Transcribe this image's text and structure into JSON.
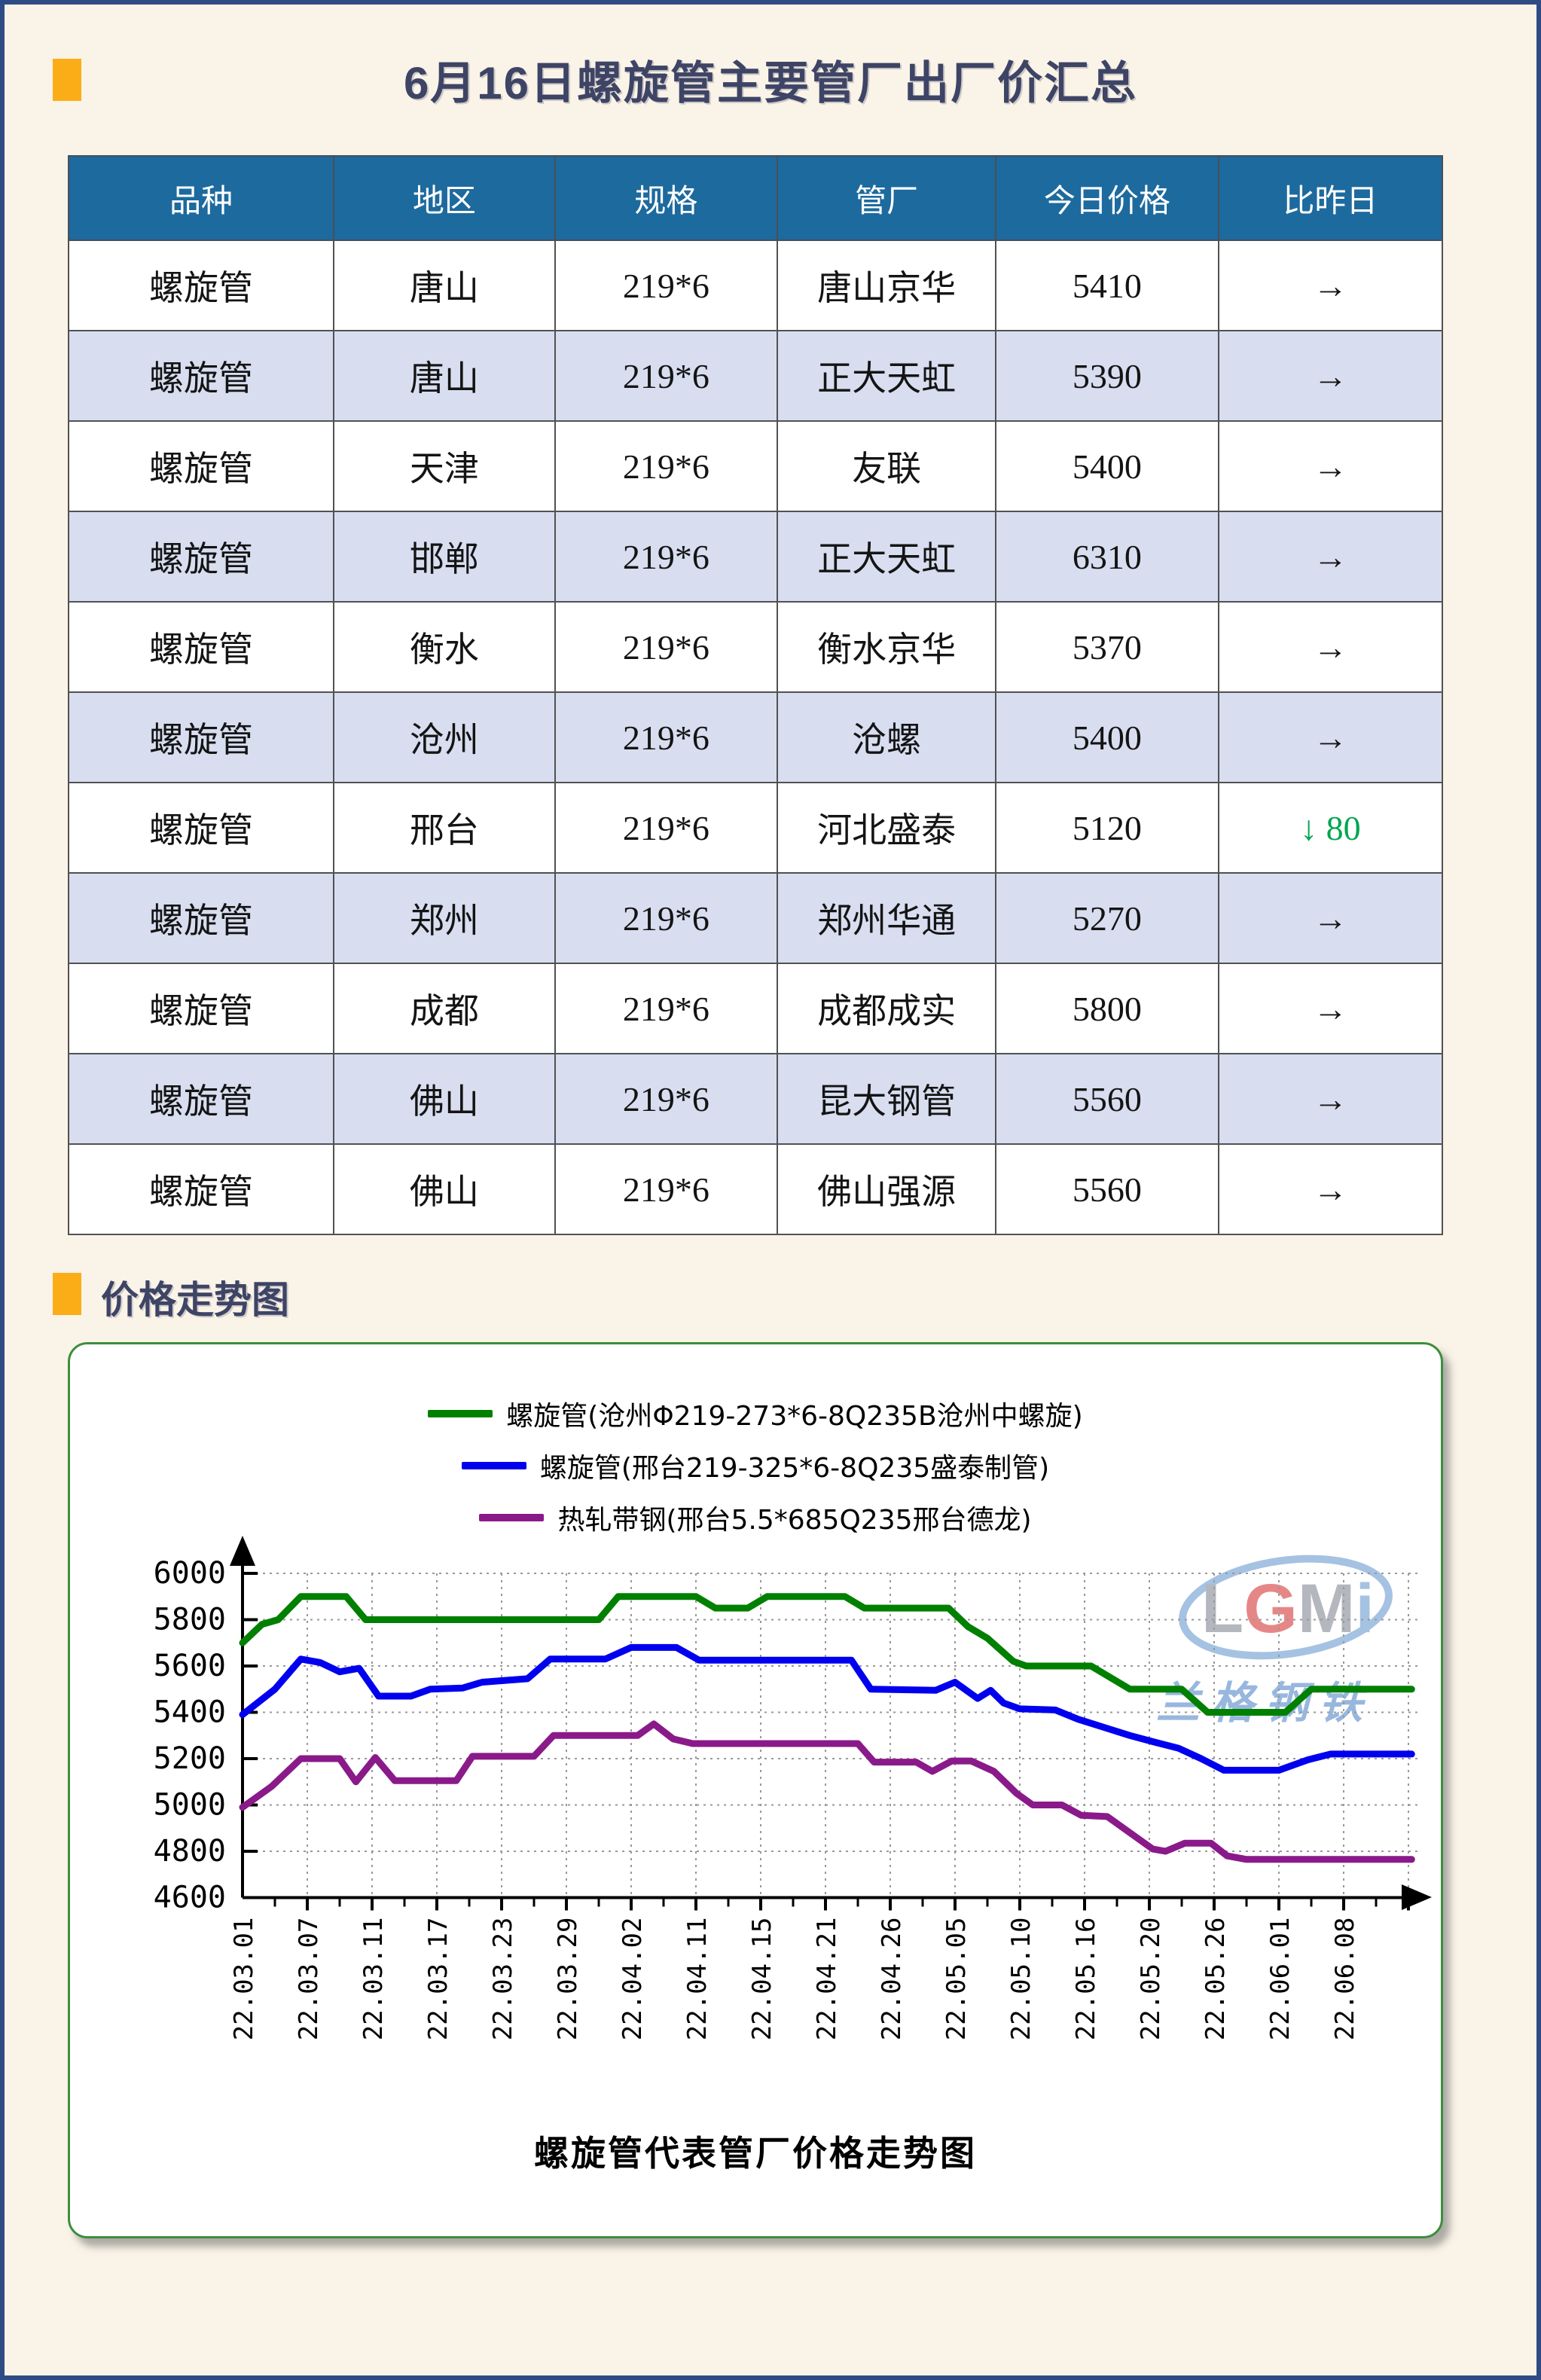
{
  "colors": {
    "page_background": "#faf3e7",
    "page_border": "#2e4b85",
    "accent_orange": "#fbad18",
    "heading_text": "#3e4465",
    "table_header_bg": "#1d6a9e",
    "table_alt_row_bg": "#d8def0",
    "price_down_green": "#00a54f"
  },
  "header": {
    "title": "6月16日螺旋管主要管厂出厂价汇总"
  },
  "table": {
    "headers": [
      "品种",
      "地区",
      "规格",
      "管厂",
      "今日价格",
      "比昨日"
    ],
    "rows": [
      {
        "variety": "螺旋管",
        "region": "唐山",
        "spec": "219*6",
        "factory": "唐山京华",
        "price": "5410",
        "change": "→",
        "down": false
      },
      {
        "variety": "螺旋管",
        "region": "唐山",
        "spec": "219*6",
        "factory": "正大天虹",
        "price": "5390",
        "change": "→",
        "down": false
      },
      {
        "variety": "螺旋管",
        "region": "天津",
        "spec": "219*6",
        "factory": "友联",
        "price": "5400",
        "change": "→",
        "down": false
      },
      {
        "variety": "螺旋管",
        "region": "邯郸",
        "spec": "219*6",
        "factory": "正大天虹",
        "price": "6310",
        "change": "→",
        "down": false
      },
      {
        "variety": "螺旋管",
        "region": "衡水",
        "spec": "219*6",
        "factory": "衡水京华",
        "price": "5370",
        "change": "→",
        "down": false
      },
      {
        "variety": "螺旋管",
        "region": "沧州",
        "spec": "219*6",
        "factory": "沧螺",
        "price": "5400",
        "change": "→",
        "down": false
      },
      {
        "variety": "螺旋管",
        "region": "邢台",
        "spec": "219*6",
        "factory": "河北盛泰",
        "price": "5120",
        "change": "↓ 80",
        "down": true
      },
      {
        "variety": "螺旋管",
        "region": "郑州",
        "spec": "219*6",
        "factory": "郑州华通",
        "price": "5270",
        "change": "→",
        "down": false
      },
      {
        "variety": "螺旋管",
        "region": "成都",
        "spec": "219*6",
        "factory": "成都成实",
        "price": "5800",
        "change": "→",
        "down": false
      },
      {
        "variety": "螺旋管",
        "region": "佛山",
        "spec": "219*6",
        "factory": "昆大钢管",
        "price": "5560",
        "change": "→",
        "down": false
      },
      {
        "variety": "螺旋管",
        "region": "佛山",
        "spec": "219*6",
        "factory": "佛山强源",
        "price": "5560",
        "change": "→",
        "down": false
      }
    ]
  },
  "section": {
    "title": "价格走势图"
  },
  "chart_data": {
    "type": "line",
    "title": "螺旋管代表管厂价格走势图",
    "ylim": [
      4600,
      6000
    ],
    "y_ticks": [
      4600,
      4800,
      5000,
      5200,
      5400,
      5600,
      5800,
      6000
    ],
    "x_tick_labels": [
      "22.03.01",
      "22.03.07",
      "22.03.11",
      "22.03.17",
      "22.03.23",
      "22.03.29",
      "22.04.02",
      "22.04.11",
      "22.04.15",
      "22.04.21",
      "22.04.26",
      "22.05.05",
      "22.05.10",
      "22.05.16",
      "22.05.20",
      "22.05.26",
      "22.06.01",
      "22.06.08"
    ],
    "grid": "dotted",
    "legend_position": "top-center",
    "watermark": {
      "text": "LGMi",
      "subtext": "兰格钢铁"
    },
    "series": [
      {
        "name": "螺旋管(沧州Φ219-273*6-8Q235B沧州中螺旋)",
        "color": "#008000",
        "points": [
          [
            0,
            5700
          ],
          [
            0.3,
            5780
          ],
          [
            0.55,
            5800
          ],
          [
            0.9,
            5900
          ],
          [
            1.6,
            5900
          ],
          [
            1.9,
            5800
          ],
          [
            5.5,
            5800
          ],
          [
            5.8,
            5900
          ],
          [
            7.0,
            5900
          ],
          [
            7.3,
            5850
          ],
          [
            7.8,
            5850
          ],
          [
            8.1,
            5900
          ],
          [
            9.3,
            5900
          ],
          [
            9.6,
            5850
          ],
          [
            10.9,
            5850
          ],
          [
            11.2,
            5770
          ],
          [
            11.5,
            5720
          ],
          [
            11.9,
            5620
          ],
          [
            12.1,
            5600
          ],
          [
            13.1,
            5600
          ],
          [
            13.4,
            5550
          ],
          [
            13.7,
            5500
          ],
          [
            14.5,
            5500
          ],
          [
            14.9,
            5400
          ],
          [
            16.1,
            5400
          ],
          [
            16.5,
            5500
          ],
          [
            18.05,
            5500
          ]
        ]
      },
      {
        "name": "螺旋管(邢台219-325*6-8Q235盛泰制管)",
        "color": "#0000ee",
        "points": [
          [
            0,
            5390
          ],
          [
            0.5,
            5500
          ],
          [
            0.9,
            5630
          ],
          [
            1.2,
            5615
          ],
          [
            1.5,
            5575
          ],
          [
            1.8,
            5590
          ],
          [
            2.1,
            5470
          ],
          [
            2.6,
            5470
          ],
          [
            2.9,
            5500
          ],
          [
            3.4,
            5505
          ],
          [
            3.7,
            5530
          ],
          [
            4.4,
            5545
          ],
          [
            4.75,
            5630
          ],
          [
            5.6,
            5630
          ],
          [
            6.0,
            5680
          ],
          [
            6.7,
            5680
          ],
          [
            7.05,
            5625
          ],
          [
            9.4,
            5625
          ],
          [
            9.7,
            5500
          ],
          [
            10.7,
            5495
          ],
          [
            11.0,
            5530
          ],
          [
            11.35,
            5460
          ],
          [
            11.55,
            5495
          ],
          [
            11.75,
            5440
          ],
          [
            12.0,
            5415
          ],
          [
            12.55,
            5410
          ],
          [
            12.9,
            5370
          ],
          [
            13.3,
            5335
          ],
          [
            13.7,
            5300
          ],
          [
            14.1,
            5270
          ],
          [
            14.45,
            5245
          ],
          [
            14.8,
            5200
          ],
          [
            15.15,
            5150
          ],
          [
            16.0,
            5150
          ],
          [
            16.45,
            5195
          ],
          [
            16.8,
            5220
          ],
          [
            18.05,
            5220
          ]
        ]
      },
      {
        "name": "热轧带钢(邢台5.5*685Q235邢台德龙)",
        "color": "#8a1a8a",
        "points": [
          [
            0,
            4990
          ],
          [
            0.45,
            5080
          ],
          [
            0.9,
            5200
          ],
          [
            1.5,
            5200
          ],
          [
            1.75,
            5100
          ],
          [
            2.05,
            5205
          ],
          [
            2.35,
            5105
          ],
          [
            3.3,
            5105
          ],
          [
            3.55,
            5210
          ],
          [
            4.5,
            5210
          ],
          [
            4.8,
            5300
          ],
          [
            6.1,
            5300
          ],
          [
            6.35,
            5350
          ],
          [
            6.65,
            5285
          ],
          [
            6.95,
            5265
          ],
          [
            9.5,
            5265
          ],
          [
            9.75,
            5185
          ],
          [
            10.4,
            5185
          ],
          [
            10.65,
            5145
          ],
          [
            10.95,
            5190
          ],
          [
            11.25,
            5190
          ],
          [
            11.6,
            5145
          ],
          [
            11.95,
            5050
          ],
          [
            12.2,
            5000
          ],
          [
            12.65,
            5000
          ],
          [
            12.95,
            4955
          ],
          [
            13.35,
            4950
          ],
          [
            14.05,
            4810
          ],
          [
            14.25,
            4800
          ],
          [
            14.55,
            4835
          ],
          [
            14.95,
            4835
          ],
          [
            15.2,
            4780
          ],
          [
            15.5,
            4765
          ],
          [
            18.05,
            4765
          ]
        ]
      }
    ]
  }
}
